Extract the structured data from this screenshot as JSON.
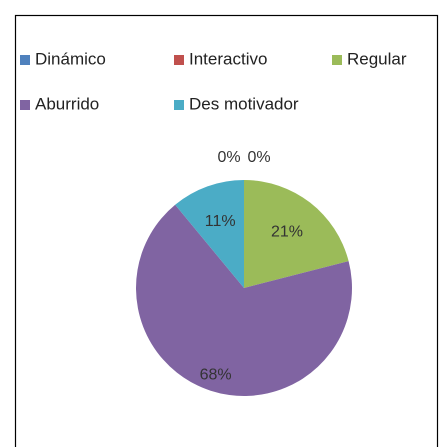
{
  "chart_data": {
    "type": "pie",
    "categories": [
      "Dinámico",
      "Interactivo",
      "Regular",
      "Aburrido",
      "Des motivador"
    ],
    "values": [
      0,
      0,
      21,
      68,
      11
    ],
    "value_labels": [
      "0%",
      "0%",
      "21%",
      "68%",
      "11%"
    ],
    "colors": [
      "#4f81bd",
      "#c0504d",
      "#9bbb59",
      "#8064a2",
      "#4bacc6"
    ],
    "legend": "top"
  }
}
